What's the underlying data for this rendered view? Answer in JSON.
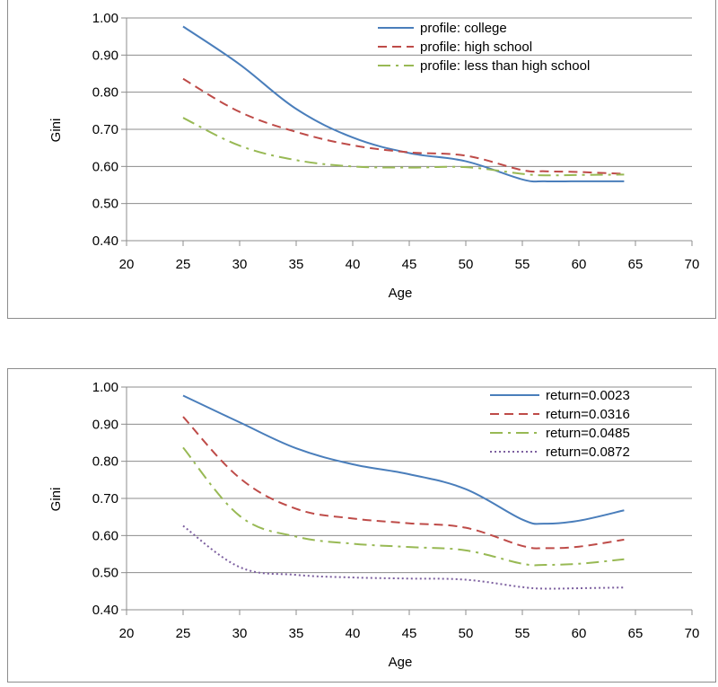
{
  "chart_data": [
    {
      "type": "line",
      "xlabel": "Age",
      "ylabel": "Gini",
      "xlim": [
        20,
        70
      ],
      "ylim": [
        0.4,
        1.0
      ],
      "xticks": [
        "20",
        "25",
        "30",
        "35",
        "40",
        "45",
        "50",
        "55",
        "60",
        "65",
        "70"
      ],
      "yticks": [
        "0.40",
        "0.50",
        "0.60",
        "0.70",
        "0.80",
        "0.90",
        "1.00"
      ],
      "grid": "horizontal",
      "legend_position": "top-right",
      "x": [
        25,
        30,
        35,
        40,
        45,
        50,
        55,
        57,
        60,
        64
      ],
      "series": [
        {
          "name": "profile: college",
          "color": "#4a7ebb",
          "dash": "solid",
          "values": [
            0.977,
            0.875,
            0.755,
            0.678,
            0.636,
            0.614,
            0.565,
            0.56,
            0.56,
            0.56
          ]
        },
        {
          "name": "profile: high school",
          "color": "#be4b48",
          "dash": "dashed",
          "values": [
            0.836,
            0.747,
            0.693,
            0.657,
            0.638,
            0.629,
            0.59,
            0.587,
            0.585,
            0.58
          ]
        },
        {
          "name": "profile: less than high school",
          "color": "#98b954",
          "dash": "dashdot",
          "values": [
            0.731,
            0.656,
            0.617,
            0.6,
            0.597,
            0.598,
            0.58,
            0.576,
            0.577,
            0.578
          ]
        }
      ]
    },
    {
      "type": "line",
      "xlabel": "Age",
      "ylabel": "Gini",
      "xlim": [
        20,
        70
      ],
      "ylim": [
        0.4,
        1.0
      ],
      "xticks": [
        "20",
        "25",
        "30",
        "35",
        "40",
        "45",
        "50",
        "55",
        "60",
        "65",
        "70"
      ],
      "yticks": [
        "0.40",
        "0.50",
        "0.60",
        "0.70",
        "0.80",
        "0.90",
        "1.00"
      ],
      "grid": "horizontal",
      "legend_position": "top-right",
      "x": [
        25,
        30,
        35,
        40,
        45,
        50,
        55,
        57,
        60,
        64
      ],
      "series": [
        {
          "name": "return=0.0023",
          "color": "#4a7ebb",
          "dash": "solid",
          "values": [
            0.977,
            0.905,
            0.835,
            0.792,
            0.765,
            0.725,
            0.643,
            0.632,
            0.64,
            0.668
          ]
        },
        {
          "name": "return=0.0316",
          "color": "#be4b48",
          "dash": "dashed",
          "values": [
            0.92,
            0.755,
            0.672,
            0.646,
            0.633,
            0.621,
            0.572,
            0.566,
            0.57,
            0.589
          ]
        },
        {
          "name": "return=0.0485",
          "color": "#98b954",
          "dash": "dashdot",
          "values": [
            0.837,
            0.653,
            0.597,
            0.578,
            0.569,
            0.56,
            0.524,
            0.521,
            0.524,
            0.536
          ]
        },
        {
          "name": "return=0.0872",
          "color": "#7d60a0",
          "dash": "dotted",
          "values": [
            0.626,
            0.515,
            0.494,
            0.487,
            0.484,
            0.481,
            0.461,
            0.457,
            0.458,
            0.46
          ]
        }
      ]
    }
  ]
}
